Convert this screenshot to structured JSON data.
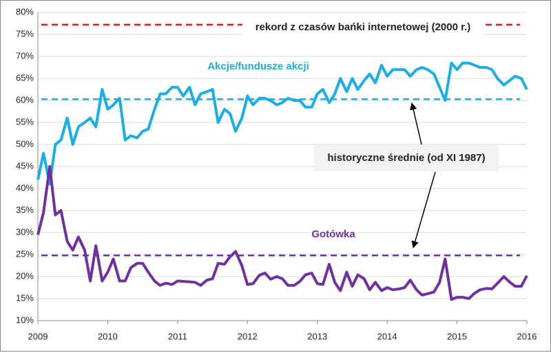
{
  "chart_data": {
    "type": "line",
    "x": [
      2009,
      2009.08,
      2009.17,
      2009.25,
      2009.33,
      2009.42,
      2009.5,
      2009.58,
      2009.67,
      2009.75,
      2009.83,
      2009.92,
      2010,
      2010.08,
      2010.17,
      2010.25,
      2010.33,
      2010.42,
      2010.5,
      2010.58,
      2010.67,
      2010.75,
      2010.83,
      2010.92,
      2011,
      2011.08,
      2011.17,
      2011.25,
      2011.33,
      2011.42,
      2011.5,
      2011.58,
      2011.67,
      2011.75,
      2011.83,
      2011.92,
      2012,
      2012.08,
      2012.17,
      2012.25,
      2012.33,
      2012.42,
      2012.5,
      2012.58,
      2012.67,
      2012.75,
      2012.83,
      2012.92,
      2013,
      2013.08,
      2013.17,
      2013.25,
      2013.33,
      2013.42,
      2013.5,
      2013.58,
      2013.67,
      2013.75,
      2013.83,
      2013.92,
      2014,
      2014.08,
      2014.17,
      2014.25,
      2014.33,
      2014.42,
      2014.5,
      2014.58,
      2014.67,
      2014.75,
      2014.83,
      2014.92,
      2015,
      2015.08,
      2015.17,
      2015.25,
      2015.33,
      2015.42,
      2015.5,
      2015.58,
      2015.67,
      2015.75,
      2015.83,
      2015.92,
      2016
    ],
    "series": [
      {
        "name": "Akcje/fundusze akcji",
        "color": "#1aaee6",
        "values": [
          42,
          48,
          41,
          50,
          51,
          56,
          50,
          54,
          55,
          56,
          54,
          62.5,
          58,
          59,
          60.5,
          51,
          52,
          51.5,
          53,
          53.5,
          58,
          61.5,
          61.5,
          63,
          63,
          61,
          63,
          59,
          61.5,
          62,
          62.5,
          55,
          58,
          57,
          53,
          56,
          61,
          59,
          60.5,
          60.5,
          60,
          59,
          59.5,
          60.5,
          60,
          60,
          58.5,
          58.5,
          61.5,
          62.5,
          59.5,
          61.5,
          65,
          62,
          65,
          62.5,
          64.5,
          66,
          64,
          68,
          65.5,
          67,
          67,
          67,
          65.5,
          67,
          67.5,
          67,
          66,
          63,
          60,
          68.5,
          67,
          68.5,
          68.5,
          68,
          67.5,
          67.5,
          67,
          65,
          63.5,
          64.5,
          65.5,
          65,
          62.5
        ]
      },
      {
        "name": "Gotówka",
        "color": "#7030a0",
        "values": [
          29.5,
          34.5,
          45,
          34,
          35,
          28,
          26,
          29,
          26,
          19,
          27,
          19,
          21,
          24,
          19,
          19,
          22,
          23,
          23,
          21,
          19,
          18,
          18.5,
          18.2,
          19,
          18.9,
          18.8,
          18.7,
          18,
          19.2,
          19.5,
          23,
          22.8,
          24.5,
          25.7,
          22.5,
          18.2,
          18.4,
          20.3,
          20.8,
          19.4,
          20,
          19.5,
          18,
          18,
          18.9,
          20.4,
          20.8,
          18.4,
          18.2,
          22.8,
          18.7,
          16.8,
          21,
          17.8,
          20.4,
          19.5,
          17,
          18.7,
          16.8,
          17.5,
          17,
          17.2,
          17.5,
          19.2,
          17,
          15.8,
          16.1,
          16.5,
          18.7,
          24,
          14.8,
          15.3,
          15.3,
          15,
          16.2,
          17,
          17.3,
          17.2,
          18.5,
          20,
          18.8,
          17.8,
          17.8,
          20.2
        ]
      }
    ],
    "reference_lines": [
      {
        "label": "rekord z czasów bańki internetowej (2000 r.)",
        "value": 77.2,
        "color": "#e31b1b"
      },
      {
        "value": 60.3,
        "color": "#1aaee6"
      },
      {
        "value": 24.8,
        "color": "#7030a0"
      }
    ],
    "annotation": "historyczne średnie (od XI 1987)",
    "xlim": [
      2009,
      2016
    ],
    "xticks": [
      2009,
      2010,
      2011,
      2012,
      2013,
      2014,
      2015,
      2016
    ],
    "ylim": [
      10,
      80
    ],
    "yticks": [
      {
        "value": 10,
        "label": "10%"
      },
      {
        "value": 15,
        "label": "15%"
      },
      {
        "value": 20,
        "label": "20%"
      },
      {
        "value": 25,
        "label": "25%"
      },
      {
        "value": 30,
        "label": "30%"
      },
      {
        "value": 35,
        "label": "35%"
      },
      {
        "value": 40,
        "label": "40%"
      },
      {
        "value": 45,
        "label": "45%"
      },
      {
        "value": 50,
        "label": "50%"
      },
      {
        "value": 55,
        "label": "55%"
      },
      {
        "value": 60,
        "label": "60%"
      },
      {
        "value": 65,
        "label": "65%"
      },
      {
        "value": 70,
        "label": "70%"
      },
      {
        "value": 75,
        "label": "75%"
      },
      {
        "value": 80,
        "label": "80%"
      }
    ],
    "grid": true
  }
}
